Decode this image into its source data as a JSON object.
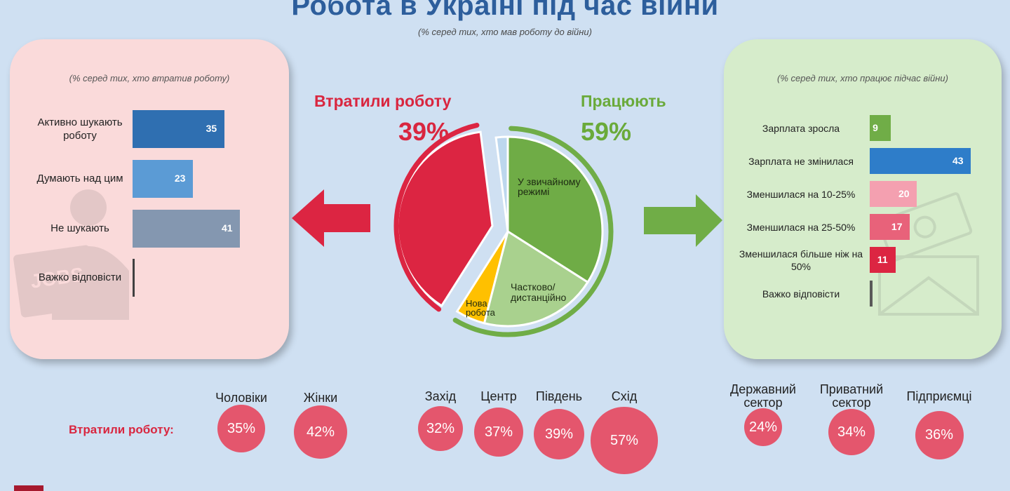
{
  "title": "Робота в Україні під час війни",
  "subtitle": "(% серед тих, хто мав роботу до війни)",
  "left_note": "(% серед тих, хто втратив роботу)",
  "right_note": "(% серед тих, хто працює підчас війни)",
  "lost_heading": "Втратили роботу",
  "lost_pct": "39%",
  "working_heading": "Працюють",
  "working_pct": "59%",
  "chart_data": [
    {
      "type": "pie",
      "slices": [
        {
          "name": "У звичайному режимі",
          "value": 34,
          "color": "#6fac46"
        },
        {
          "name": "Частково/ дистанційно",
          "value": 20,
          "color": "#a9d18e"
        },
        {
          "name": "Нова робота",
          "value": 5,
          "color": "#ffc000"
        },
        {
          "name": "Втратили роботу",
          "value": 39,
          "color": "#dc2542"
        },
        {
          "name": "",
          "value": 2,
          "color": "#bdd7ee"
        }
      ]
    },
    {
      "type": "bar",
      "orientation": "horizontal",
      "title": "(% серед тих, хто втратив роботу)",
      "categories": [
        "Активно шукають роботу",
        "Думають над цим",
        "Не шукають",
        "Важко відповісти"
      ],
      "values": [
        35,
        23,
        41,
        1
      ],
      "labels": [
        "35",
        "23",
        "41",
        ""
      ],
      "colors": [
        "#2f6fb1",
        "#5b9bd5",
        "#8497b0",
        "#404040"
      ]
    },
    {
      "type": "bar",
      "orientation": "horizontal",
      "title": "(% серед тих, хто працює підчас війни)",
      "categories": [
        "Зарплата зросла",
        "Зарплата не змінилася",
        "Зменшилася на 10-25%",
        "Зменшилася на 25-50%",
        "Зменшилася більше ніж на 50%",
        "Важко відповісти"
      ],
      "values": [
        9,
        43,
        20,
        17,
        11,
        1
      ],
      "labels": [
        "9",
        "43",
        "20",
        "17",
        "11",
        ""
      ],
      "colors": [
        "#70ad47",
        "#2e7dc9",
        "#f4a0b0",
        "#e8627a",
        "#dc2542",
        "#595959"
      ]
    },
    {
      "type": "bubble",
      "title": "Втратили роботу:",
      "categories": [
        "Чоловіки",
        "Жінки",
        "Захід",
        "Центр",
        "Південь",
        "Схід",
        "Державний сектор",
        "Приватний сектор",
        "Підприємці"
      ],
      "values": [
        35,
        42,
        32,
        37,
        39,
        57,
        24,
        34,
        36
      ],
      "labels": [
        "35%",
        "42%",
        "32%",
        "37%",
        "39%",
        "57%",
        "24%",
        "34%",
        "36%"
      ]
    }
  ],
  "left_bars_display": [
    {
      "label": "Активно шукають роботу",
      "value": "35"
    },
    {
      "label": "Думають над цим",
      "value": "23"
    },
    {
      "label": "Не шукають",
      "value": "41"
    },
    {
      "label": "Важко відповісти",
      "value": ""
    }
  ],
  "right_bars_display": [
    {
      "label": "Зарплата зросла",
      "value": "9"
    },
    {
      "label": "Зарплата не змінилася",
      "value": "43"
    },
    {
      "label": "Зменшилася на 10-25%",
      "value": "20"
    },
    {
      "label": "Зменшилася на 25-50%",
      "value": "17"
    },
    {
      "label": "Зменшилася більше ніж на 50%",
      "value": "11"
    },
    {
      "label": "Важко відповісти",
      "value": ""
    }
  ],
  "pie_labels": {
    "regular": "У звичайному режимі",
    "partial": "Частково/ дистанційно",
    "new": "Нова робота"
  },
  "bubbles_row_label": "Втратили роботу:",
  "bubbles": [
    {
      "label": "Чоловіки",
      "value": "35%"
    },
    {
      "label": "Жінки",
      "value": "42%"
    },
    {
      "label": "Захід",
      "value": "32%"
    },
    {
      "label": "Центр",
      "value": "37%"
    },
    {
      "label": "Південь",
      "value": "39%"
    },
    {
      "label": "Схід",
      "value": "57%"
    },
    {
      "label": "Державний сектор",
      "value": "24%"
    },
    {
      "label": "Приватний сектор",
      "value": "34%"
    },
    {
      "label": "Підприємці",
      "value": "36%"
    }
  ],
  "icons": {
    "jobs_illustration": "jobs-newspaper-icon",
    "money_illustration": "money-envelope-icon",
    "left_arrow": "arrow-left-icon",
    "right_arrow": "arrow-right-icon"
  }
}
